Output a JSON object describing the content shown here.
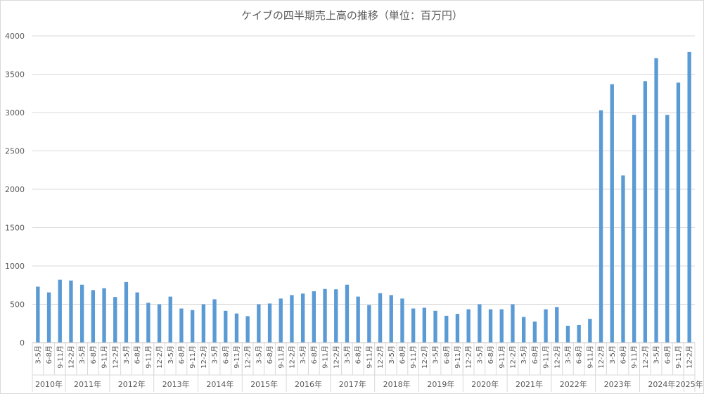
{
  "chart_data": {
    "type": "bar",
    "title": "ケイブの四半期売上高の推移（単位：百万円）",
    "xlabel": "",
    "ylabel": "",
    "ylim": [
      0,
      4000
    ],
    "yticks": [
      0,
      500,
      1000,
      1500,
      2000,
      2500,
      3000,
      3500,
      4000
    ],
    "grid": true,
    "legend": "none",
    "bar_color": "#5b9bd5",
    "categories": [
      "3-5月",
      "6-8月",
      "9-11月",
      "12-2月",
      "3-5月",
      "6-8月",
      "9-11月",
      "12-2月",
      "3-5月",
      "6-8月",
      "9-11月",
      "12-2月",
      "3-5月",
      "6-8月",
      "9-11月",
      "12-2月",
      "3-5月",
      "6-8月",
      "9-11月",
      "12-2月",
      "3-5月",
      "6-8月",
      "9-11月",
      "12-2月",
      "3-5月",
      "6-8月",
      "9-11月",
      "12-2月",
      "3-5月",
      "6-8月",
      "9-11月",
      "12-2月",
      "3-5月",
      "6-8月",
      "9-11月",
      "12-2月",
      "3-5月",
      "6-8月",
      "9-11月",
      "12-2月",
      "3-5月",
      "6-8月",
      "9-11月",
      "12-2月",
      "3-5月",
      "6-8月",
      "9-11月",
      "12-2月",
      "3-5月",
      "6-8月",
      "9-11月",
      "12-2月",
      "3-5月",
      "6-8月",
      "9-11月",
      "12-2月",
      "3-5月",
      "6-8月",
      "9-11月",
      "12-2月"
    ],
    "year_groups": [
      {
        "label": "2010年",
        "count": 3
      },
      {
        "label": "2011年",
        "count": 4
      },
      {
        "label": "2012年",
        "count": 4
      },
      {
        "label": "2013年",
        "count": 4
      },
      {
        "label": "2014年",
        "count": 4
      },
      {
        "label": "2015年",
        "count": 4
      },
      {
        "label": "2016年",
        "count": 4
      },
      {
        "label": "2017年",
        "count": 4
      },
      {
        "label": "2018年",
        "count": 4
      },
      {
        "label": "2019年",
        "count": 4
      },
      {
        "label": "2020年",
        "count": 4
      },
      {
        "label": "2021年",
        "count": 4
      },
      {
        "label": "2022年",
        "count": 4
      },
      {
        "label": "2023年",
        "count": 4
      },
      {
        "label": "2024年",
        "count": 4
      },
      {
        "label": "2025年",
        "count": 1
      }
    ],
    "values": [
      730,
      655,
      820,
      810,
      755,
      685,
      710,
      595,
      790,
      655,
      520,
      500,
      600,
      445,
      425,
      500,
      565,
      415,
      380,
      345,
      500,
      510,
      575,
      620,
      640,
      670,
      700,
      695,
      755,
      600,
      490,
      645,
      620,
      575,
      445,
      455,
      415,
      350,
      375,
      435,
      500,
      435,
      435,
      500,
      335,
      275,
      435,
      465,
      220,
      230,
      310,
      3030,
      3370,
      2180,
      2970,
      3410,
      3710,
      2970,
      3390,
      3790
    ]
  }
}
